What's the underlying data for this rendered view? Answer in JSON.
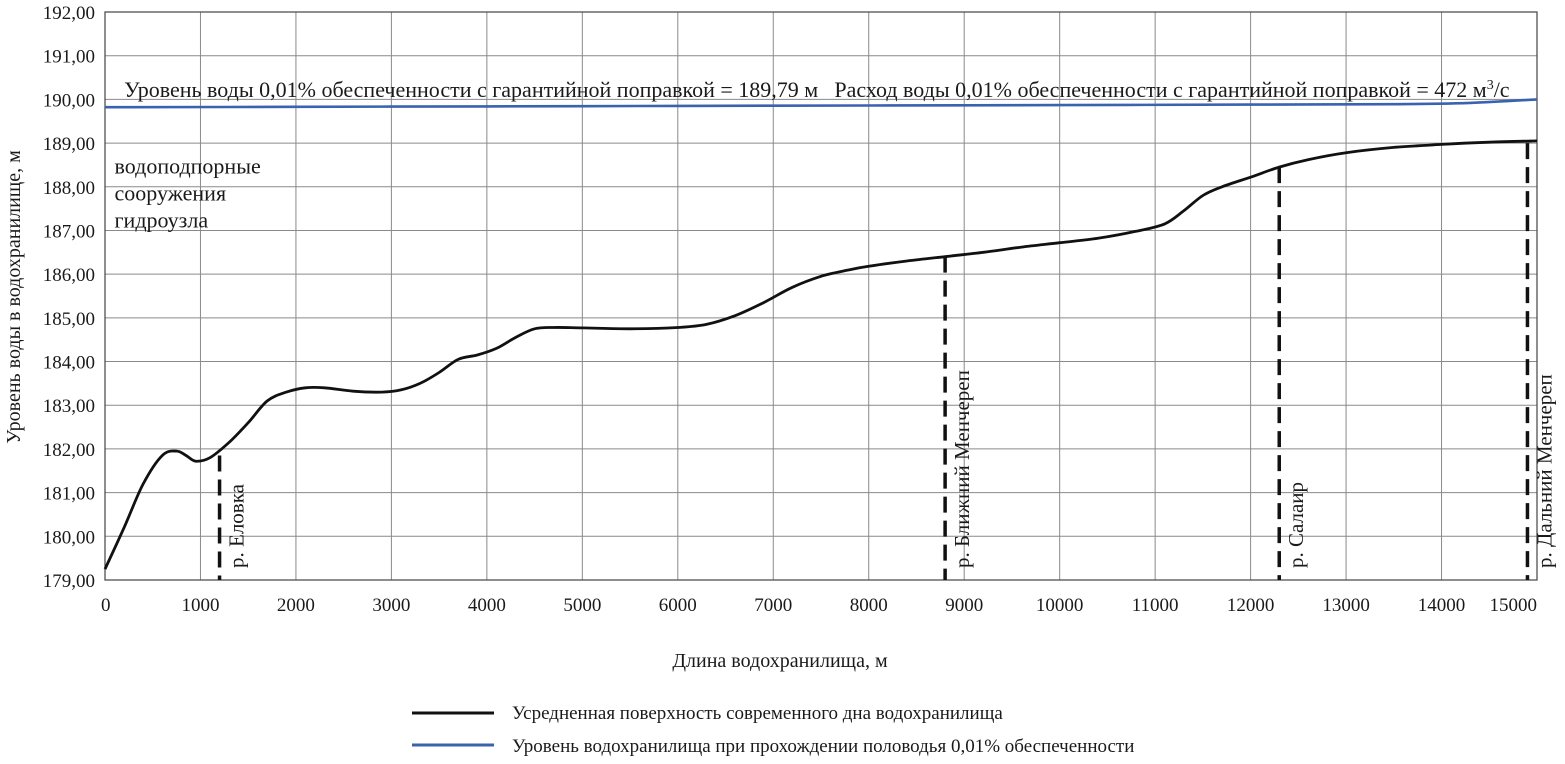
{
  "chart_data": {
    "type": "line",
    "title": "",
    "xlabel": "Длина водохранилища, м",
    "ylabel": "Уровень воды в водохранилище, м",
    "xlim": [
      0,
      15000
    ],
    "ylim": [
      179,
      192
    ],
    "x_ticks": [
      0,
      1000,
      2000,
      3000,
      4000,
      5000,
      6000,
      7000,
      8000,
      9000,
      10000,
      11000,
      12000,
      13000,
      14000,
      15000
    ],
    "x_tick_labels": [
      "0",
      "1000",
      "2000",
      "3000",
      "4000",
      "5000",
      "6000",
      "7000",
      "8000",
      "9000",
      "10000",
      "11000",
      "12000",
      "13000",
      "14000",
      "15000"
    ],
    "y_ticks": [
      179,
      180,
      181,
      182,
      183,
      184,
      185,
      186,
      187,
      188,
      189,
      190,
      191,
      192
    ],
    "y_tick_labels": [
      "179,00",
      "180,00",
      "181,00",
      "182,00",
      "183,00",
      "184,00",
      "185,00",
      "186,00",
      "187,00",
      "188,00",
      "189,00",
      "190,00",
      "191,00",
      "192,00"
    ],
    "grid": true,
    "legend_position": "bottom",
    "series": [
      {
        "name": "Усредненная поверхность современного дна водохранилища",
        "color": "#111111",
        "x": [
          0,
          200,
          400,
          600,
          750,
          850,
          950,
          1100,
          1300,
          1500,
          1700,
          1900,
          2100,
          2300,
          2600,
          2900,
          3100,
          3300,
          3500,
          3700,
          3900,
          4100,
          4300,
          4500,
          4700,
          5000,
          5500,
          6000,
          6300,
          6600,
          6900,
          7200,
          7500,
          7800,
          8000,
          8400,
          8800,
          9200,
          9600,
          10000,
          10400,
          10800,
          11100,
          11300,
          11500,
          11700,
          12000,
          12300,
          12600,
          13000,
          13500,
          14000,
          14500,
          15000
        ],
        "y": [
          179.25,
          180.2,
          181.2,
          181.85,
          181.95,
          181.85,
          181.72,
          181.8,
          182.15,
          182.6,
          183.1,
          183.3,
          183.4,
          183.4,
          183.32,
          183.3,
          183.35,
          183.5,
          183.75,
          184.05,
          184.15,
          184.3,
          184.55,
          184.75,
          184.78,
          184.77,
          184.75,
          184.78,
          184.85,
          185.05,
          185.35,
          185.7,
          185.95,
          186.1,
          186.18,
          186.3,
          186.4,
          186.5,
          186.62,
          186.72,
          186.82,
          186.98,
          187.15,
          187.45,
          187.8,
          188.0,
          188.22,
          188.45,
          188.62,
          188.78,
          188.9,
          188.97,
          189.02,
          189.05
        ]
      },
      {
        "name": "Уровень водохранилища при прохождении половодья 0,01% обеспеченности",
        "color": "#3b62ae",
        "x": [
          0,
          2000,
          4000,
          6000,
          8000,
          10000,
          12000,
          13500,
          14300,
          15000
        ],
        "y": [
          189.82,
          189.83,
          189.84,
          189.85,
          189.86,
          189.87,
          189.88,
          189.89,
          189.92,
          190.0
        ]
      }
    ],
    "annotations": [
      {
        "text": "Уровень воды 0,01% обеспеченности с гарантийной поправкой = 189,79 м",
        "x": 200,
        "y": 190.05
      },
      {
        "text_prefix": "Расход воды 0,01% обеспеченности с гарантийной поправкой = 472 м",
        "superscript": "3",
        "text_suffix": "/с",
        "x": 7640,
        "y": 190.05
      },
      {
        "text_lines": [
          "водоподпорные",
          "сооружения",
          "гидроузла"
        ],
        "x": 100,
        "y": 188.3
      }
    ],
    "markers": [
      {
        "label": "р. Еловка",
        "x": 1200,
        "y_top": 181.85
      },
      {
        "label": "р. Ближний  Менчереп",
        "x": 8800,
        "y_top": 186.4
      },
      {
        "label": "р. Салаир",
        "x": 12300,
        "y_top": 188.45
      },
      {
        "label": "р. Дальний  Менчереп",
        "x": 14900,
        "y_top": 189.0
      }
    ]
  }
}
